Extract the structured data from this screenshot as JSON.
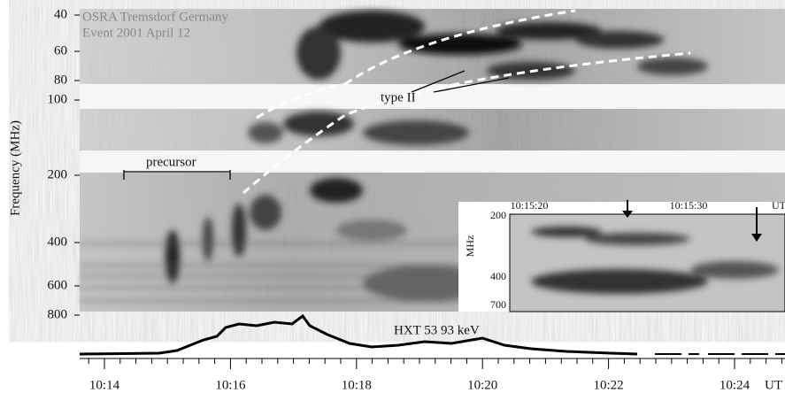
{
  "figure": {
    "y_axis": {
      "label": "Frequency (MHz)",
      "ticks": [
        40,
        60,
        80,
        100,
        200,
        400,
        600,
        800
      ]
    },
    "x_axis": {
      "ticks": [
        "10:14",
        "10:16",
        "10:18",
        "10:20",
        "10:22",
        "10:24"
      ],
      "unit": "UT"
    },
    "annotations": {
      "station": "OSRA Tremsdorf Germany",
      "event": "Event 2001 April 12",
      "type_ii": "type II",
      "precursor": "precursor",
      "hxt": "HXT 53 93 keV"
    },
    "inset": {
      "x_ticks": [
        "10:15:20",
        "10:15:30"
      ],
      "x_unit": "UT",
      "y_ticks": [
        200,
        400,
        700
      ],
      "y_label": "MHz"
    }
  }
}
